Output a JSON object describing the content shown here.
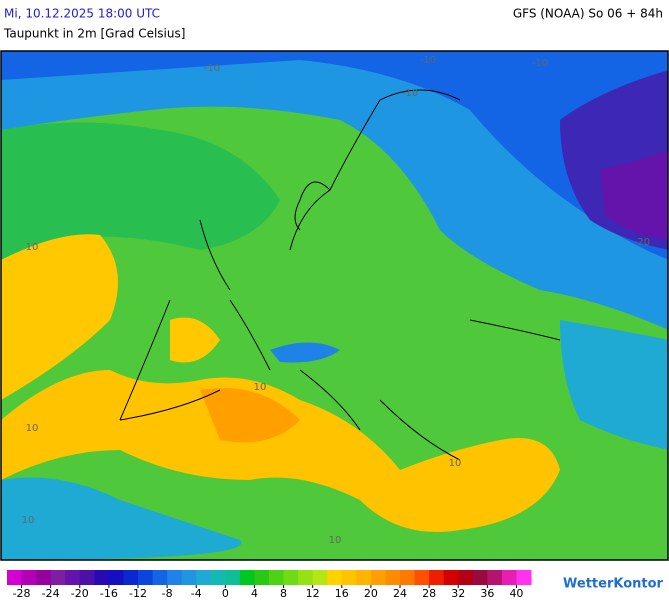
{
  "header": {
    "datetime": "Mi, 10.12.2025 18:00 UTC",
    "model": "GFS (NOAA) So 06 + 84h",
    "parameter": "Taupunkt in 2m [Grad Celsius]"
  },
  "map": {
    "contour_labels": [
      "-10",
      "-10",
      "-10",
      "-10",
      "-20",
      "10",
      "10",
      "10",
      "10",
      "10",
      "10"
    ]
  },
  "legend": {
    "range": [
      -30,
      42
    ],
    "ticks": [
      -28,
      -24,
      -20,
      -16,
      -12,
      -8,
      -4,
      0,
      4,
      8,
      12,
      16,
      20,
      24,
      28,
      32,
      36,
      40
    ],
    "colors": [
      "#d200d2",
      "#b400b4",
      "#9600a0",
      "#7d1ea5",
      "#6414aa",
      "#4b0faa",
      "#280ab4",
      "#140fc3",
      "#0a28d2",
      "#0a46dc",
      "#1464e6",
      "#1e82e6",
      "#1e96e1",
      "#1eaad2",
      "#14b9b4",
      "#0fbe96",
      "#00c81e",
      "#28c814",
      "#50d214",
      "#6edc14",
      "#96e114",
      "#b4e614",
      "#ffd200",
      "#ffc300",
      "#ffb400",
      "#ffa000",
      "#ff8c00",
      "#ff7800",
      "#ff5000",
      "#f01e00",
      "#d20000",
      "#b40014",
      "#9b0a3c",
      "#b4146e",
      "#e61eb4",
      "#ff32f0"
    ]
  },
  "logo": "WetterKontor"
}
